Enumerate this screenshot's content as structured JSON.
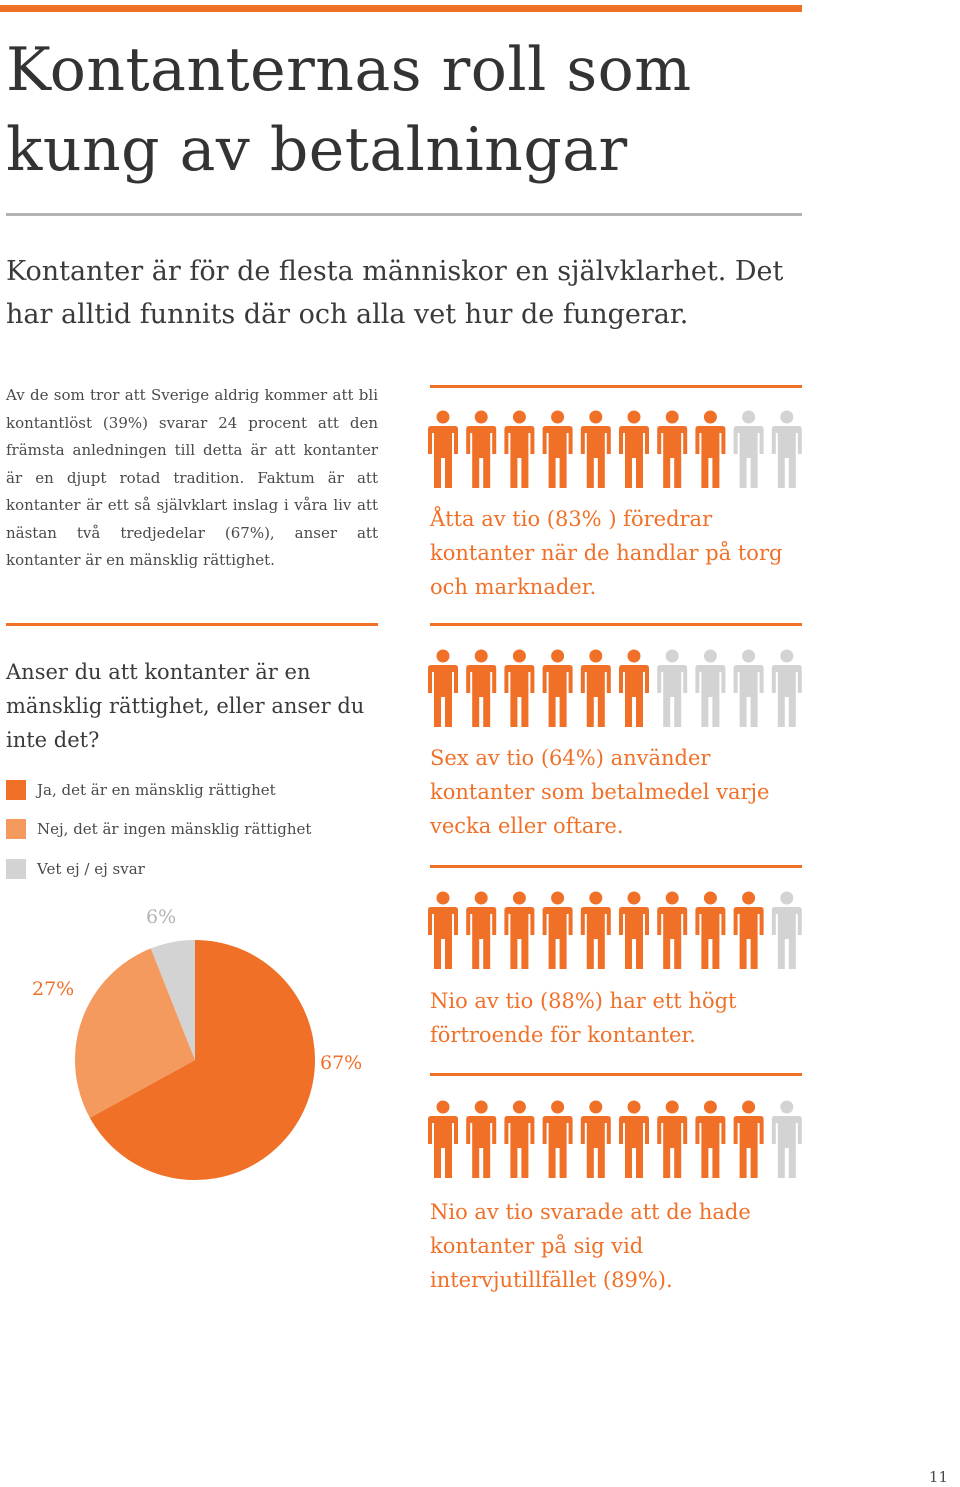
{
  "title": "Kontanternas roll som kung av betalningar",
  "lead": "Kontanter är för de flesta människor en självklarhet. Det har alltid funnits där och alla vet hur de fungerar.",
  "body": "Av de som tror att Sverige aldrig kommer att bli kontantlöst (39%) svarar 24 procent att den främsta anledningen till detta är att kontanter är en djupt rotad tradition. Faktum är att kontanter är ett så självklart inslag i våra liv att nästan två tredjedelar (67%), anser att kontanter är en mänsklig rättighet.",
  "question": "Anser du att kontanter är en mänsklig rättighet, eller anser du inte det?",
  "colors": {
    "accent": "#f07028",
    "light_accent": "#f59a5f",
    "gray": "#d3d3d3"
  },
  "chart_data": {
    "type": "pie",
    "legend": [
      {
        "label": "Ja, det är en mänsklig rättighet",
        "color": "#f07028"
      },
      {
        "label": "Nej, det är ingen mänsklig rättighet",
        "color": "#f59a5f"
      },
      {
        "label": "Vet ej / ej svar",
        "color": "#d3d3d3"
      }
    ],
    "slices": [
      {
        "label": "Ja, det är en mänsklig rättighet",
        "value": 67,
        "text": "67%",
        "color": "#f07028"
      },
      {
        "label": "Nej, det är ingen mänsklig rättighet",
        "value": 27,
        "text": "27%",
        "color": "#f59a5f"
      },
      {
        "label": "Vet ej / ej svar",
        "value": 6,
        "text": "6%",
        "color": "#d3d3d3"
      }
    ]
  },
  "stats": [
    {
      "highlighted": 8,
      "total": 10,
      "text": "Åtta av tio (83% ) föredrar kontanter när de handlar på torg och marknader."
    },
    {
      "highlighted": 6,
      "total": 10,
      "text": "Sex av tio (64%) använder kontanter som betalmedel varje vecka eller oftare."
    },
    {
      "highlighted": 9,
      "total": 10,
      "text": "Nio av tio (88%) har ett högt förtroende för kontanter."
    },
    {
      "highlighted": 9,
      "total": 10,
      "text": "Nio av tio svarade att de hade kontanter på sig vid intervjutillfället (89%)."
    }
  ],
  "page_number": "11"
}
